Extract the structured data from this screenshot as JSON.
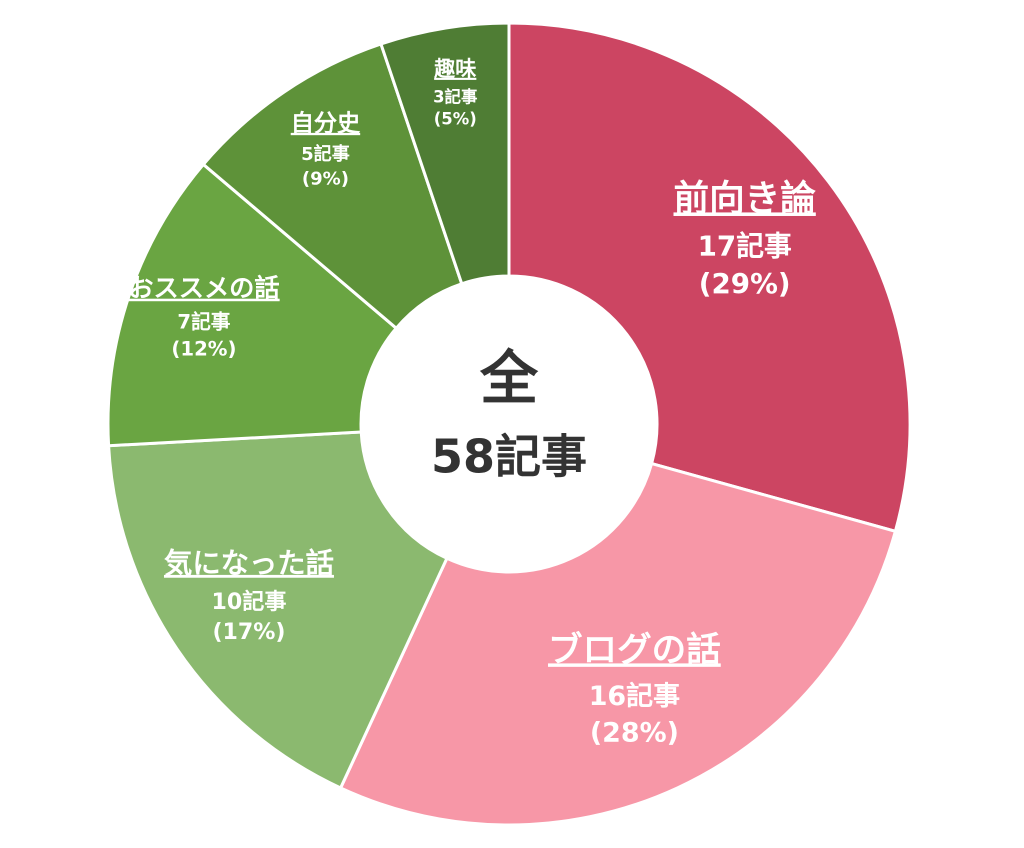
{
  "chart_data": {
    "type": "donut",
    "center_label": "全",
    "total": 58,
    "total_label": "58記事",
    "categories": [
      "前向き論",
      "ブログの話",
      "気になった話",
      "おススメの話",
      "自分史",
      "趣味"
    ],
    "values": [
      17,
      16,
      10,
      7,
      5,
      3
    ],
    "value_labels": [
      "17記事",
      "16記事",
      "10記事",
      "7記事",
      "5記事",
      "3記事"
    ],
    "percentages": [
      29,
      28,
      17,
      12,
      9,
      5
    ],
    "percent_labels": [
      "(29%)",
      "(28%)",
      "(17%)",
      "(12%)",
      "(9%)",
      "(5%)"
    ],
    "colors": [
      "#cc4562",
      "#f797a7",
      "#8bb96f",
      "#6aa542",
      "#5e9239",
      "#4f7d34"
    ]
  }
}
